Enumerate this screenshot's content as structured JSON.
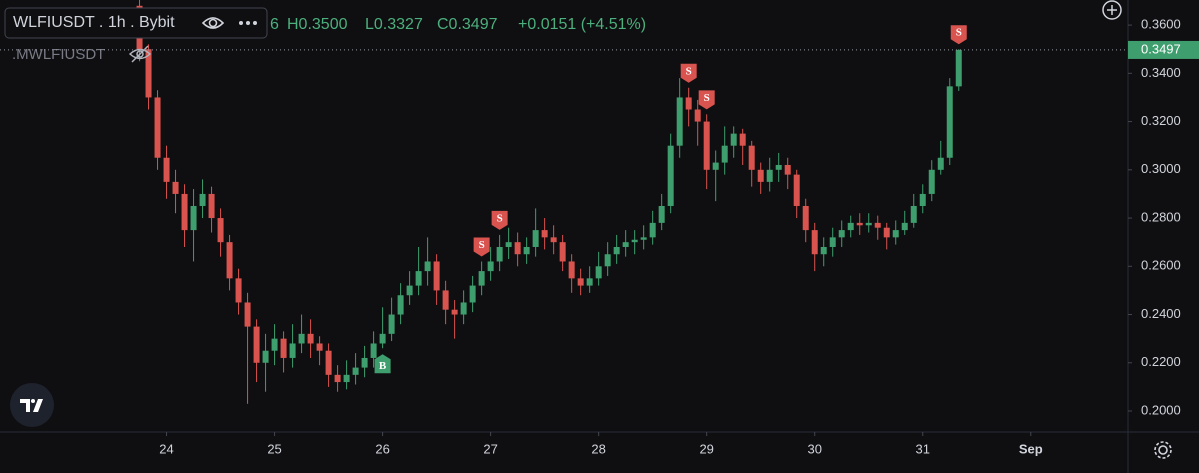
{
  "chart_data": {
    "type": "candlestick",
    "title": "WLFIUSDT . 1h . Bybit",
    "indicator": ".MWLFIUSDT",
    "ohlc_labels": [
      "6",
      "H0.3500",
      "L0.3327",
      "C0.3497"
    ],
    "change": "+0.0151 (+4.51%)",
    "up_color": "#3f9e6e",
    "down_color": "#d9534f",
    "series": {
      "open": [
        0.368,
        0.35,
        0.33,
        0.305,
        0.295,
        0.29,
        0.275,
        0.285,
        0.29,
        0.28,
        0.27,
        0.255,
        0.245,
        0.235,
        0.22,
        0.225,
        0.23,
        0.222,
        0.228,
        0.232,
        0.228,
        0.225,
        0.215,
        0.212,
        0.215,
        0.218,
        0.222,
        0.228,
        0.232,
        0.24,
        0.248,
        0.252,
        0.258,
        0.262,
        0.25,
        0.242,
        0.24,
        0.245,
        0.252,
        0.258,
        0.262,
        0.268,
        0.27,
        0.265,
        0.268,
        0.275,
        0.272,
        0.27,
        0.262,
        0.255,
        0.252,
        0.255,
        0.26,
        0.265,
        0.268,
        0.27,
        0.271,
        0.272,
        0.278,
        0.285,
        0.31,
        0.33,
        0.325,
        0.32,
        0.3,
        0.303,
        0.31,
        0.315,
        0.31,
        0.3,
        0.295,
        0.3,
        0.302,
        0.298,
        0.285,
        0.275,
        0.265,
        0.268,
        0.272,
        0.275,
        0.278,
        0.277,
        0.278,
        0.276,
        0.272,
        0.275,
        0.278,
        0.285,
        0.29,
        0.3,
        0.305,
        0.3346
      ],
      "high": [
        0.372,
        0.352,
        0.333,
        0.31,
        0.3,
        0.294,
        0.292,
        0.296,
        0.293,
        0.284,
        0.273,
        0.259,
        0.249,
        0.238,
        0.232,
        0.236,
        0.233,
        0.236,
        0.24,
        0.238,
        0.231,
        0.228,
        0.219,
        0.221,
        0.224,
        0.227,
        0.233,
        0.243,
        0.247,
        0.253,
        0.258,
        0.268,
        0.272,
        0.265,
        0.254,
        0.246,
        0.25,
        0.256,
        0.262,
        0.268,
        0.273,
        0.276,
        0.274,
        0.272,
        0.284,
        0.28,
        0.277,
        0.273,
        0.265,
        0.259,
        0.26,
        0.266,
        0.27,
        0.273,
        0.275,
        0.275,
        0.277,
        0.283,
        0.29,
        0.315,
        0.338,
        0.334,
        0.329,
        0.323,
        0.308,
        0.318,
        0.318,
        0.317,
        0.312,
        0.303,
        0.305,
        0.307,
        0.305,
        0.3,
        0.288,
        0.278,
        0.272,
        0.276,
        0.279,
        0.281,
        0.282,
        0.282,
        0.281,
        0.278,
        0.279,
        0.283,
        0.29,
        0.294,
        0.304,
        0.312,
        0.338,
        0.35
      ],
      "low": [
        0.345,
        0.325,
        0.3,
        0.288,
        0.282,
        0.268,
        0.262,
        0.28,
        0.274,
        0.264,
        0.25,
        0.24,
        0.203,
        0.212,
        0.208,
        0.219,
        0.216,
        0.218,
        0.224,
        0.222,
        0.219,
        0.21,
        0.208,
        0.209,
        0.211,
        0.214,
        0.218,
        0.226,
        0.229,
        0.236,
        0.244,
        0.248,
        0.252,
        0.244,
        0.236,
        0.23,
        0.236,
        0.241,
        0.248,
        0.254,
        0.258,
        0.263,
        0.26,
        0.261,
        0.264,
        0.267,
        0.265,
        0.258,
        0.249,
        0.248,
        0.249,
        0.252,
        0.256,
        0.261,
        0.264,
        0.265,
        0.267,
        0.269,
        0.275,
        0.282,
        0.305,
        0.318,
        0.31,
        0.292,
        0.287,
        0.298,
        0.305,
        0.302,
        0.293,
        0.29,
        0.291,
        0.295,
        0.292,
        0.28,
        0.27,
        0.258,
        0.26,
        0.264,
        0.268,
        0.272,
        0.273,
        0.274,
        0.271,
        0.267,
        0.269,
        0.273,
        0.276,
        0.282,
        0.287,
        0.298,
        0.302,
        0.3327
      ],
      "close": [
        0.35,
        0.33,
        0.305,
        0.295,
        0.29,
        0.275,
        0.285,
        0.29,
        0.28,
        0.27,
        0.255,
        0.245,
        0.235,
        0.22,
        0.225,
        0.23,
        0.222,
        0.228,
        0.232,
        0.228,
        0.225,
        0.215,
        0.212,
        0.215,
        0.218,
        0.222,
        0.228,
        0.232,
        0.24,
        0.248,
        0.252,
        0.258,
        0.262,
        0.25,
        0.242,
        0.24,
        0.245,
        0.252,
        0.258,
        0.262,
        0.268,
        0.27,
        0.265,
        0.268,
        0.275,
        0.272,
        0.27,
        0.262,
        0.255,
        0.252,
        0.255,
        0.26,
        0.265,
        0.268,
        0.27,
        0.271,
        0.272,
        0.278,
        0.285,
        0.31,
        0.33,
        0.325,
        0.32,
        0.3,
        0.303,
        0.31,
        0.315,
        0.31,
        0.3,
        0.295,
        0.3,
        0.302,
        0.298,
        0.285,
        0.275,
        0.265,
        0.268,
        0.272,
        0.275,
        0.278,
        0.277,
        0.278,
        0.276,
        0.272,
        0.275,
        0.278,
        0.285,
        0.29,
        0.3,
        0.305,
        0.3346,
        0.3497
      ]
    },
    "signals": [
      null,
      null,
      null,
      null,
      null,
      null,
      null,
      null,
      null,
      null,
      null,
      null,
      null,
      null,
      null,
      null,
      null,
      null,
      null,
      null,
      null,
      null,
      null,
      null,
      null,
      null,
      null,
      "B",
      null,
      null,
      null,
      null,
      null,
      null,
      null,
      null,
      null,
      null,
      "S",
      null,
      "S",
      null,
      null,
      null,
      null,
      null,
      null,
      null,
      null,
      null,
      null,
      null,
      null,
      null,
      null,
      null,
      null,
      null,
      null,
      null,
      null,
      "S",
      null,
      "S",
      null,
      null,
      null,
      null,
      null,
      null,
      null,
      null,
      null,
      null,
      null,
      null,
      null,
      null,
      null,
      null,
      null,
      null,
      null,
      null,
      null,
      null,
      null,
      null,
      null,
      null,
      null,
      "S"
    ],
    "xlim": [
      -15.5,
      109.8
    ],
    "xticks": [
      {
        "value": 3,
        "label": "24"
      },
      {
        "value": 15,
        "label": "25"
      },
      {
        "value": 27,
        "label": "26"
      },
      {
        "value": 39,
        "label": "27"
      },
      {
        "value": 51,
        "label": "28"
      },
      {
        "value": 63,
        "label": "29"
      },
      {
        "value": 75,
        "label": "30"
      },
      {
        "value": 87,
        "label": "31"
      },
      {
        "value": 99,
        "label": "Sep"
      }
    ],
    "ylim": [
      0.1913,
      0.3704
    ],
    "yticks": [
      {
        "value": 0.2,
        "label": "0.2000"
      },
      {
        "value": 0.22,
        "label": "0.2200"
      },
      {
        "value": 0.24,
        "label": "0.2400"
      },
      {
        "value": 0.26,
        "label": "0.2600"
      },
      {
        "value": 0.28,
        "label": "0.2800"
      },
      {
        "value": 0.3,
        "label": "0.3000"
      },
      {
        "value": 0.32,
        "label": "0.3200"
      },
      {
        "value": 0.34,
        "label": "0.3400"
      },
      {
        "value": 0.36,
        "label": "0.3600"
      }
    ],
    "grid": false
  }
}
